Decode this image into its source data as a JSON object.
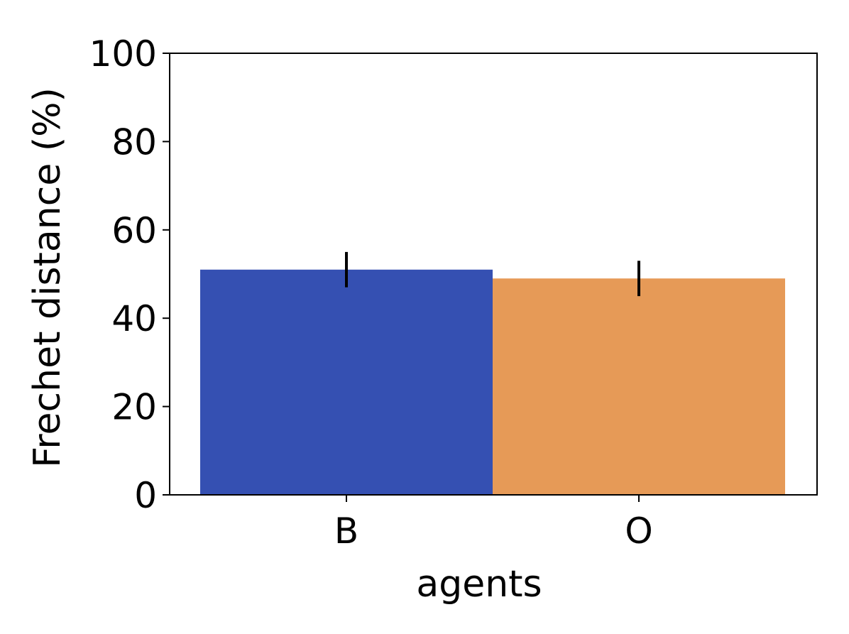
{
  "chart_data": {
    "type": "bar",
    "title": "",
    "xlabel": "agents",
    "ylabel": "Frechet distance (%)",
    "categories": [
      "B",
      "O"
    ],
    "values": [
      51,
      49
    ],
    "error_bars": [
      {
        "low": 47,
        "high": 55
      },
      {
        "low": 45,
        "high": 53
      }
    ],
    "ylim": [
      0,
      100
    ],
    "yticks": [
      0,
      20,
      40,
      60,
      80,
      100
    ],
    "ytick_labels": [
      "0",
      "20",
      "40",
      "60",
      "80",
      "100"
    ],
    "colors": [
      "#3550b2",
      "#e69a57"
    ],
    "grid": false,
    "legend": "none"
  }
}
